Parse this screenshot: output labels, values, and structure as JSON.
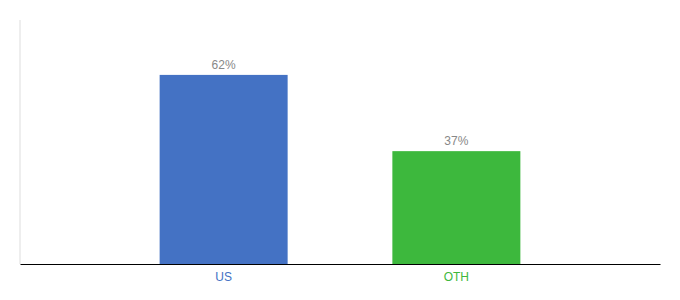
{
  "chart_data": {
    "type": "bar",
    "categories": [
      "US",
      "OTH"
    ],
    "values": [
      62,
      37
    ],
    "colors": [
      "#4472c4",
      "#3db83d"
    ],
    "value_labels": [
      "62%",
      "37%"
    ],
    "data_labels": true,
    "ylim": [
      0,
      80
    ],
    "tick_labels": "x",
    "grid": false
  }
}
